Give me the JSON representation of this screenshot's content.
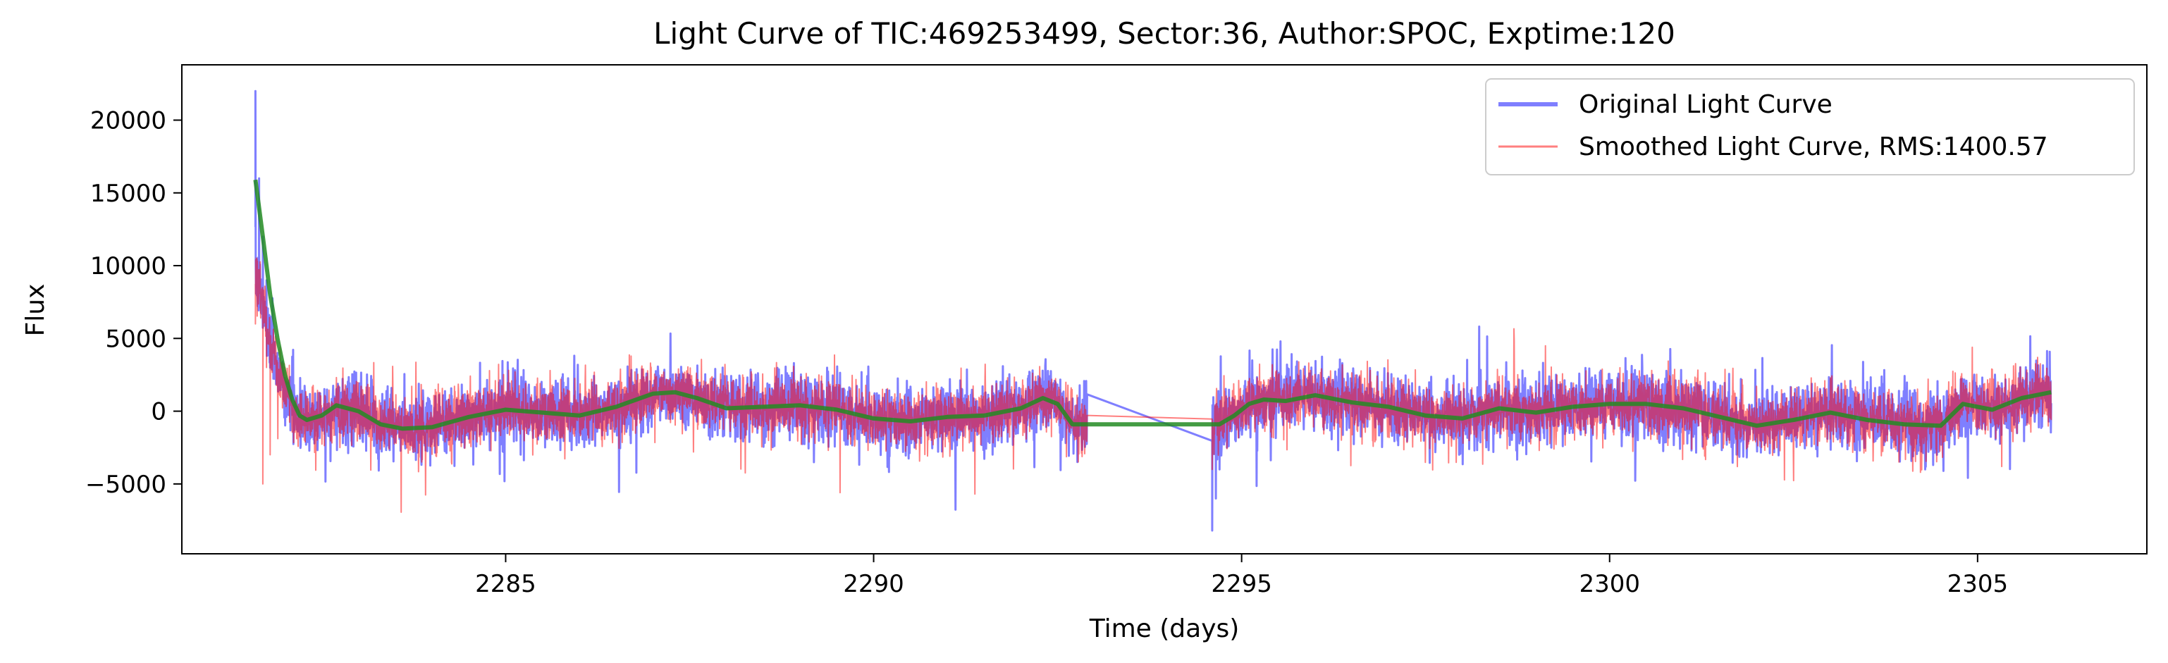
{
  "chart_data": {
    "type": "line",
    "title": "Light Curve of TIC:469253499, Sector:36, Author:SPOC, Exptime:120",
    "xlabel": "Time (days)",
    "ylabel": "Flux",
    "xlim": [
      2280.6,
      2307.3
    ],
    "ylim": [
      -9800,
      23800
    ],
    "x_ticks": [
      2285,
      2290,
      2295,
      2300,
      2305
    ],
    "x_tick_labels": [
      "2285",
      "2290",
      "2295",
      "2300",
      "2305"
    ],
    "y_ticks": [
      -5000,
      0,
      5000,
      10000,
      15000,
      20000
    ],
    "y_tick_labels": [
      "−5000",
      "0",
      "5000",
      "10000",
      "15000",
      "20000"
    ],
    "legend_position": "top-right",
    "segments": [
      [
        2281.6,
        2292.9
      ],
      [
        2294.6,
        2306.0
      ]
    ],
    "series": [
      {
        "name": "Original Light Curve",
        "color": "#0000ff",
        "opacity": 0.5,
        "legend": true,
        "noise_std": 1500,
        "spike_x": [
          2281.6,
          2281.65,
          2281.7,
          2281.75,
          2281.8,
          2281.9,
          2282.0,
          2282.2
        ],
        "spike_y": [
          22000,
          16000,
          12000,
          9000,
          6500,
          4000,
          2000,
          500
        ],
        "dip_x": [
          2294.6,
          2294.65,
          2294.7,
          2294.8
        ],
        "dip_y": [
          -8200,
          -6000,
          -4000,
          -2500
        ]
      },
      {
        "name": "Smoothed Light Curve, RMS:1400.57",
        "color": "#ff0000",
        "opacity": 0.5,
        "legend": true,
        "noise_std": 1400,
        "spike_x": [
          2281.6,
          2281.7,
          2281.75,
          2281.8,
          2282.0
        ],
        "spike_y": [
          6000,
          -5000,
          3000,
          -3000,
          500
        ],
        "dip_x": [
          2294.6,
          2294.7
        ],
        "dip_y": [
          -4000,
          -2000
        ]
      },
      {
        "name": "Trend",
        "color": "#228b22",
        "opacity": 0.85,
        "legend": false,
        "x": [
          2281.6,
          2281.7,
          2281.8,
          2281.9,
          2282.0,
          2282.1,
          2282.2,
          2282.3,
          2282.5,
          2282.7,
          2283.0,
          2283.3,
          2283.6,
          2284.0,
          2284.5,
          2285.0,
          2285.5,
          2286.0,
          2286.5,
          2287.0,
          2287.3,
          2287.6,
          2288.0,
          2288.5,
          2289.0,
          2289.5,
          2290.0,
          2290.5,
          2291.0,
          2291.5,
          2292.0,
          2292.3,
          2292.5,
          2292.7,
          2292.9,
          2294.7,
          2294.9,
          2295.1,
          2295.3,
          2295.6,
          2296.0,
          2296.5,
          2297.0,
          2297.5,
          2298.0,
          2298.5,
          2299.0,
          2299.5,
          2300.0,
          2300.5,
          2301.0,
          2301.5,
          2302.0,
          2302.5,
          2303.0,
          2303.5,
          2304.0,
          2304.5,
          2304.8,
          2305.2,
          2305.6,
          2306.0
        ],
        "y": [
          15900,
          12000,
          8000,
          5000,
          2500,
          800,
          -300,
          -600,
          -300,
          400,
          0,
          -900,
          -1200,
          -1100,
          -400,
          100,
          -100,
          -300,
          300,
          1200,
          1300,
          900,
          200,
          300,
          400,
          100,
          -500,
          -700,
          -400,
          -300,
          200,
          900,
          500,
          -900,
          -900,
          -900,
          -300,
          500,
          800,
          700,
          1100,
          600,
          300,
          -300,
          -500,
          200,
          -100,
          300,
          500,
          500,
          200,
          -400,
          -1000,
          -600,
          -100,
          -600,
          -900,
          -1000,
          500,
          100,
          900,
          1300
        ]
      }
    ]
  }
}
